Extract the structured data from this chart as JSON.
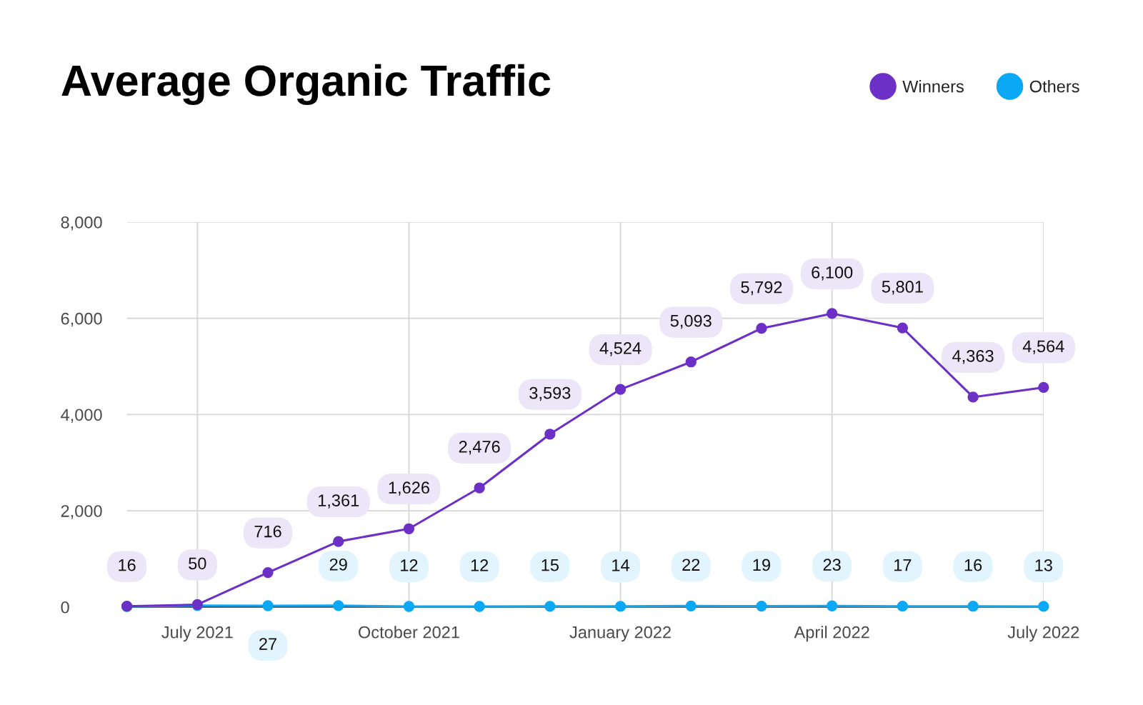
{
  "chart_data": {
    "type": "line",
    "title": "Average Organic Traffic",
    "categories": [
      null,
      "July 2021",
      null,
      null,
      "October 2021",
      null,
      null,
      "January 2022",
      null,
      null,
      "April 2022",
      null,
      null,
      "July 2022"
    ],
    "series": [
      {
        "name": "Winners",
        "color": "#6c30c6",
        "values": [
          16,
          50,
          716,
          1361,
          1626,
          2476,
          3593,
          4524,
          5093,
          5792,
          6100,
          5801,
          4363,
          4564
        ],
        "value_labels": [
          "16",
          "50",
          "716",
          "1,361",
          "1,626",
          "2,476",
          "3,593",
          "4,524",
          "5,093",
          "5,792",
          "6,100",
          "5,801",
          "4,363",
          "4,564"
        ]
      },
      {
        "name": "Others",
        "color": "#0aa8f5",
        "values": [
          10,
          30,
          27,
          29,
          12,
          12,
          15,
          14,
          22,
          19,
          23,
          17,
          16,
          13
        ],
        "value_labels": [
          null,
          null,
          "27",
          "29",
          "12",
          "12",
          "15",
          "14",
          "22",
          "19",
          "23",
          "17",
          "16",
          "13"
        ]
      }
    ],
    "ylim": [
      0,
      8000
    ],
    "yticks": [
      {
        "value": 0,
        "label": "0"
      },
      {
        "value": 2000,
        "label": "2,000"
      },
      {
        "value": 4000,
        "label": "4,000"
      },
      {
        "value": 6000,
        "label": "6,000"
      },
      {
        "value": 8000,
        "label": "8,000"
      }
    ],
    "grid": true,
    "legend": "top right",
    "marker": "circle",
    "line_style": "solid"
  }
}
